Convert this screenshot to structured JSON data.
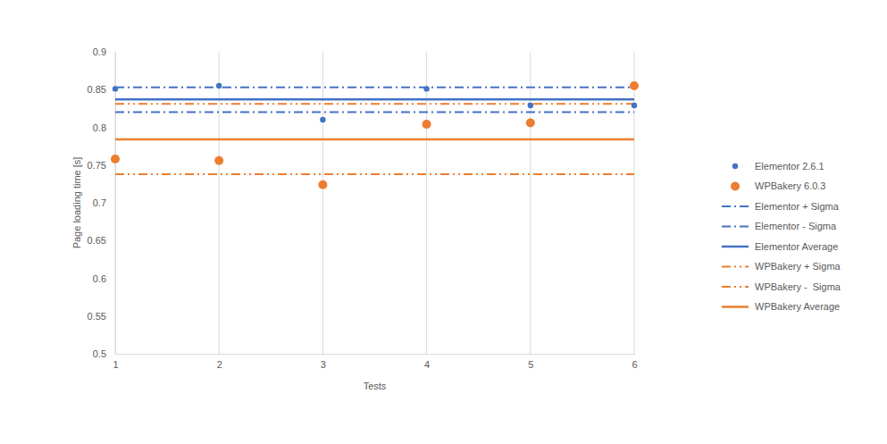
{
  "chart_data": {
    "type": "scatter",
    "x_label": "Tests",
    "y_label": "Page loading time [s]",
    "x": [
      1,
      2,
      3,
      4,
      5,
      6
    ],
    "xlim": [
      1,
      6
    ],
    "xticks": [
      1,
      2,
      3,
      4,
      5,
      6
    ],
    "ylim": [
      0.5,
      0.9
    ],
    "yticks": [
      0.5,
      0.55,
      0.6,
      0.65,
      0.7,
      0.75,
      0.8,
      0.85,
      0.9
    ],
    "grid": "x",
    "legend": "right",
    "series": [
      {
        "name": "Elementor 2.6.1",
        "type": "scatter",
        "marker": "dot",
        "color": "#4472c4",
        "values": [
          0.851,
          0.855,
          0.81,
          0.851,
          0.829,
          0.829
        ]
      },
      {
        "name": "WPBakery 6.0.3",
        "type": "scatter",
        "marker": "circle",
        "color": "#ed7d31",
        "values": [
          0.758,
          0.756,
          0.724,
          0.804,
          0.806,
          0.855
        ]
      },
      {
        "name": "Elementor + Sigma",
        "type": "line",
        "line_style": "dash-dot",
        "color": "#4472c4",
        "values": [
          0.853,
          0.853,
          0.853,
          0.853,
          0.853,
          0.853
        ]
      },
      {
        "name": "Elementor - Sigma",
        "type": "line",
        "line_style": "dash-dot",
        "color": "#4472c4",
        "values": [
          0.82,
          0.82,
          0.82,
          0.82,
          0.82,
          0.82
        ]
      },
      {
        "name": "Elementor Average",
        "type": "line",
        "line_style": "solid",
        "color": "#4472c4",
        "values": [
          0.837,
          0.837,
          0.837,
          0.837,
          0.837,
          0.837
        ]
      },
      {
        "name": "WPBakery + Sigma",
        "type": "line",
        "line_style": "dash-dot-dot",
        "color": "#ed7d31",
        "values": [
          0.831,
          0.831,
          0.831,
          0.831,
          0.831,
          0.831
        ]
      },
      {
        "name": "WPBakery -  Sigma",
        "type": "line",
        "line_style": "dash-dot-dot",
        "color": "#ed7d31",
        "values": [
          0.738,
          0.738,
          0.738,
          0.738,
          0.738,
          0.738
        ]
      },
      {
        "name": "WPBakery Average",
        "type": "line",
        "line_style": "solid",
        "color": "#ed7d31",
        "values": [
          0.784,
          0.784,
          0.784,
          0.784,
          0.784,
          0.784
        ]
      }
    ]
  }
}
